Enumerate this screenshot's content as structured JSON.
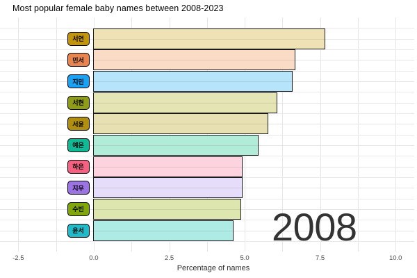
{
  "title": "Most popular female baby names between 2008-2023",
  "year_annotation": "2008",
  "axis": {
    "x_label": "Percentage of names",
    "ticks": [
      {
        "value": -2.5,
        "label": "-2.5"
      },
      {
        "value": 0,
        "label": "0.0"
      },
      {
        "value": 2.5,
        "label": "2.5"
      },
      {
        "value": 5,
        "label": "5.0"
      },
      {
        "value": 7.5,
        "label": "7.5"
      },
      {
        "value": 10,
        "label": "10.0"
      }
    ]
  },
  "chart_data": {
    "type": "bar",
    "orientation": "horizontal",
    "title": "Most popular female baby names between 2008-2023",
    "xlabel": "Percentage of names",
    "xlim": [
      -2.5,
      10
    ],
    "grid": "major and minor vertical gridlines every 1.25, light gray; horizontal gridlines at category centers and boundaries",
    "legend": "none",
    "year_annotation": "2008",
    "categories": [
      "서연",
      "민서",
      "지민",
      "서현",
      "서윤",
      "예은",
      "하은",
      "지우",
      "수빈",
      "윤서"
    ],
    "values": [
      7.68,
      6.7,
      6.61,
      6.11,
      5.79,
      5.47,
      4.95,
      4.94,
      4.9,
      4.65
    ],
    "label_colors": [
      "#c2940c",
      "#e8854e",
      "#1ca0f2",
      "#8f9c19",
      "#b08e10",
      "#12b795",
      "#f56180",
      "#9b73e3",
      "#80a60b",
      "#20bac8"
    ],
    "bar_colors": [
      "#efe2b4",
      "#fadcc6",
      "#b6e4fa",
      "#e4e4b5",
      "#e7e0b3",
      "#b1ecd9",
      "#fdd3df",
      "#e6ddfa",
      "#dce6ae",
      "#adebe4"
    ]
  },
  "colors": {
    "background": "#ffffff",
    "gridline": "#e6e6e6",
    "bar_border": "#1a1a1a",
    "axis_text": "#4d4d4d",
    "year_text": "#333333",
    "title_text": "#000000"
  }
}
